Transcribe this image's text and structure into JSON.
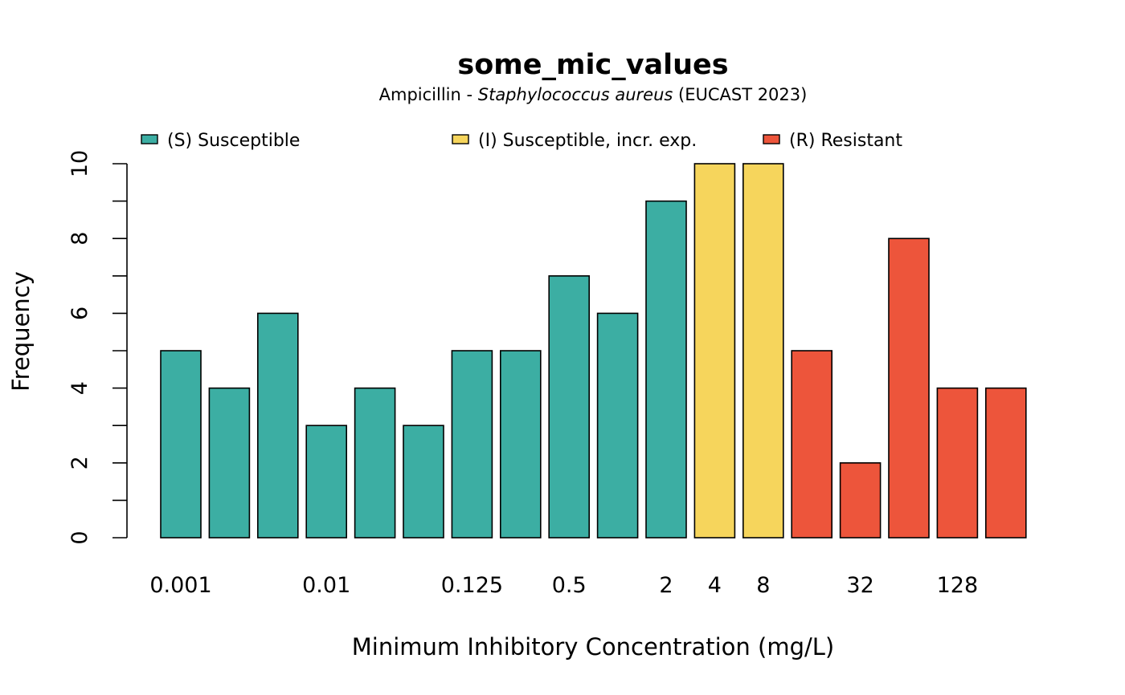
{
  "chart_data": {
    "type": "bar",
    "title": "some_mic_values",
    "subtitle": {
      "prefix": "Ampicillin - ",
      "organism": "Staphylococcus aureus",
      "suffix": " (EUCAST 2023)"
    },
    "xlabel": "Minimum Inhibitory Concentration (mg/L)",
    "ylabel": "Frequency",
    "ylim": [
      0,
      10
    ],
    "y_ticks": [
      0,
      2,
      4,
      6,
      8,
      10
    ],
    "legend_position": "top",
    "legend": [
      {
        "key": "S",
        "label": "(S) Susceptible",
        "color": "#3CAEA3"
      },
      {
        "key": "I",
        "label": "(I) Susceptible, incr. exp.",
        "color": "#F6D55C"
      },
      {
        "key": "R",
        "label": "(R) Resistant",
        "color": "#ED553B"
      }
    ],
    "bars": [
      {
        "label": "0.001",
        "value": 5,
        "class": "S"
      },
      {
        "label": "",
        "value": 4,
        "class": "S"
      },
      {
        "label": "",
        "value": 6,
        "class": "S"
      },
      {
        "label": "0.01",
        "value": 3,
        "class": "S"
      },
      {
        "label": "",
        "value": 4,
        "class": "S"
      },
      {
        "label": "",
        "value": 3,
        "class": "S"
      },
      {
        "label": "0.125",
        "value": 5,
        "class": "S"
      },
      {
        "label": "",
        "value": 5,
        "class": "S"
      },
      {
        "label": "0.5",
        "value": 7,
        "class": "S"
      },
      {
        "label": "",
        "value": 6,
        "class": "S"
      },
      {
        "label": "2",
        "value": 9,
        "class": "S"
      },
      {
        "label": "4",
        "value": 10,
        "class": "I"
      },
      {
        "label": "8",
        "value": 10,
        "class": "I"
      },
      {
        "label": "",
        "value": 5,
        "class": "R"
      },
      {
        "label": "32",
        "value": 2,
        "class": "R"
      },
      {
        "label": "",
        "value": 8,
        "class": "R"
      },
      {
        "label": "128",
        "value": 4,
        "class": "R"
      },
      {
        "label": "",
        "value": 4,
        "class": "R"
      }
    ]
  }
}
